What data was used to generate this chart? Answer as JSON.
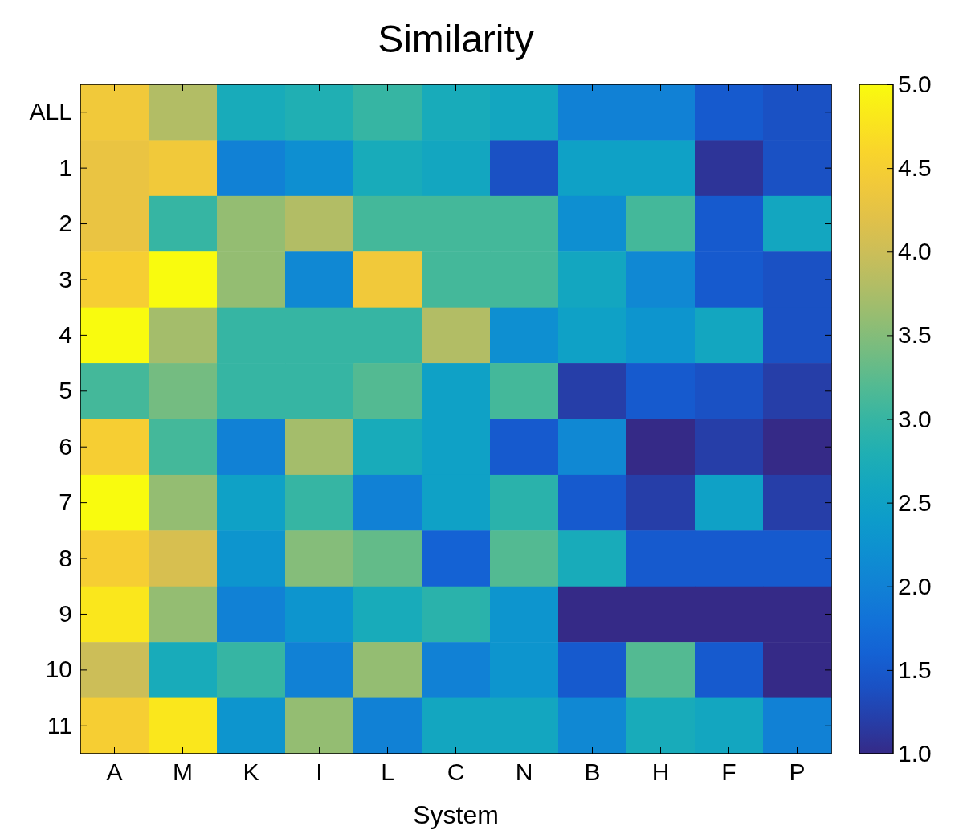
{
  "chart_data": {
    "type": "heatmap",
    "title": "Similarity",
    "xlabel": "System",
    "categories": [
      "A",
      "M",
      "K",
      "I",
      "L",
      "C",
      "N",
      "B",
      "H",
      "F",
      "P"
    ],
    "y_categories": [
      "ALL",
      "1",
      "2",
      "3",
      "4",
      "5",
      "6",
      "7",
      "8",
      "9",
      "10",
      "11"
    ],
    "cells": [
      [
        4.4,
        3.8,
        2.7,
        2.8,
        3.0,
        2.7,
        2.6,
        2.0,
        2.0,
        1.5,
        1.4
      ],
      [
        4.3,
        4.4,
        2.0,
        2.2,
        2.7,
        2.6,
        1.4,
        2.5,
        2.5,
        1.1,
        1.4
      ],
      [
        4.3,
        3.0,
        3.6,
        3.8,
        3.1,
        3.1,
        3.1,
        2.2,
        3.1,
        1.5,
        2.6
      ],
      [
        4.5,
        5.0,
        3.6,
        2.1,
        4.4,
        3.1,
        3.1,
        2.6,
        2.1,
        1.5,
        1.4
      ],
      [
        5.0,
        3.7,
        3.0,
        3.0,
        3.0,
        3.8,
        2.2,
        2.5,
        2.3,
        2.6,
        1.4
      ],
      [
        3.1,
        3.4,
        3.0,
        3.0,
        3.2,
        2.5,
        3.1,
        1.2,
        1.5,
        1.4,
        1.2
      ],
      [
        4.5,
        3.1,
        2.0,
        3.7,
        2.7,
        2.5,
        1.5,
        2.1,
        1.0,
        1.2,
        1.0
      ],
      [
        5.0,
        3.6,
        2.5,
        3.0,
        2.0,
        2.5,
        2.9,
        1.5,
        1.2,
        2.5,
        1.2
      ],
      [
        4.5,
        4.1,
        2.3,
        3.5,
        3.3,
        1.6,
        3.2,
        2.7,
        1.5,
        1.5,
        1.5
      ],
      [
        4.8,
        3.6,
        2.0,
        2.3,
        2.7,
        2.9,
        2.3,
        1.0,
        1.0,
        1.0,
        1.0
      ],
      [
        4.0,
        2.7,
        3.0,
        2.0,
        3.6,
        2.0,
        2.3,
        1.5,
        3.2,
        1.5,
        1.0
      ],
      [
        4.5,
        4.8,
        2.3,
        3.6,
        2.0,
        2.6,
        2.6,
        2.1,
        2.7,
        2.6,
        2.0
      ]
    ],
    "clim": [
      1.0,
      5.0
    ],
    "cticks": [
      {
        "value": 1,
        "label": "1.0"
      },
      {
        "value": 1.5,
        "label": "1.5"
      },
      {
        "value": 2,
        "label": "2.0"
      },
      {
        "value": 2.5,
        "label": "2.5"
      },
      {
        "value": 3,
        "label": "3.0"
      },
      {
        "value": 3.5,
        "label": "3.5"
      },
      {
        "value": 4,
        "label": "4.0"
      },
      {
        "value": 4.5,
        "label": "4.5"
      },
      {
        "value": 5,
        "label": "5.0"
      }
    ]
  }
}
